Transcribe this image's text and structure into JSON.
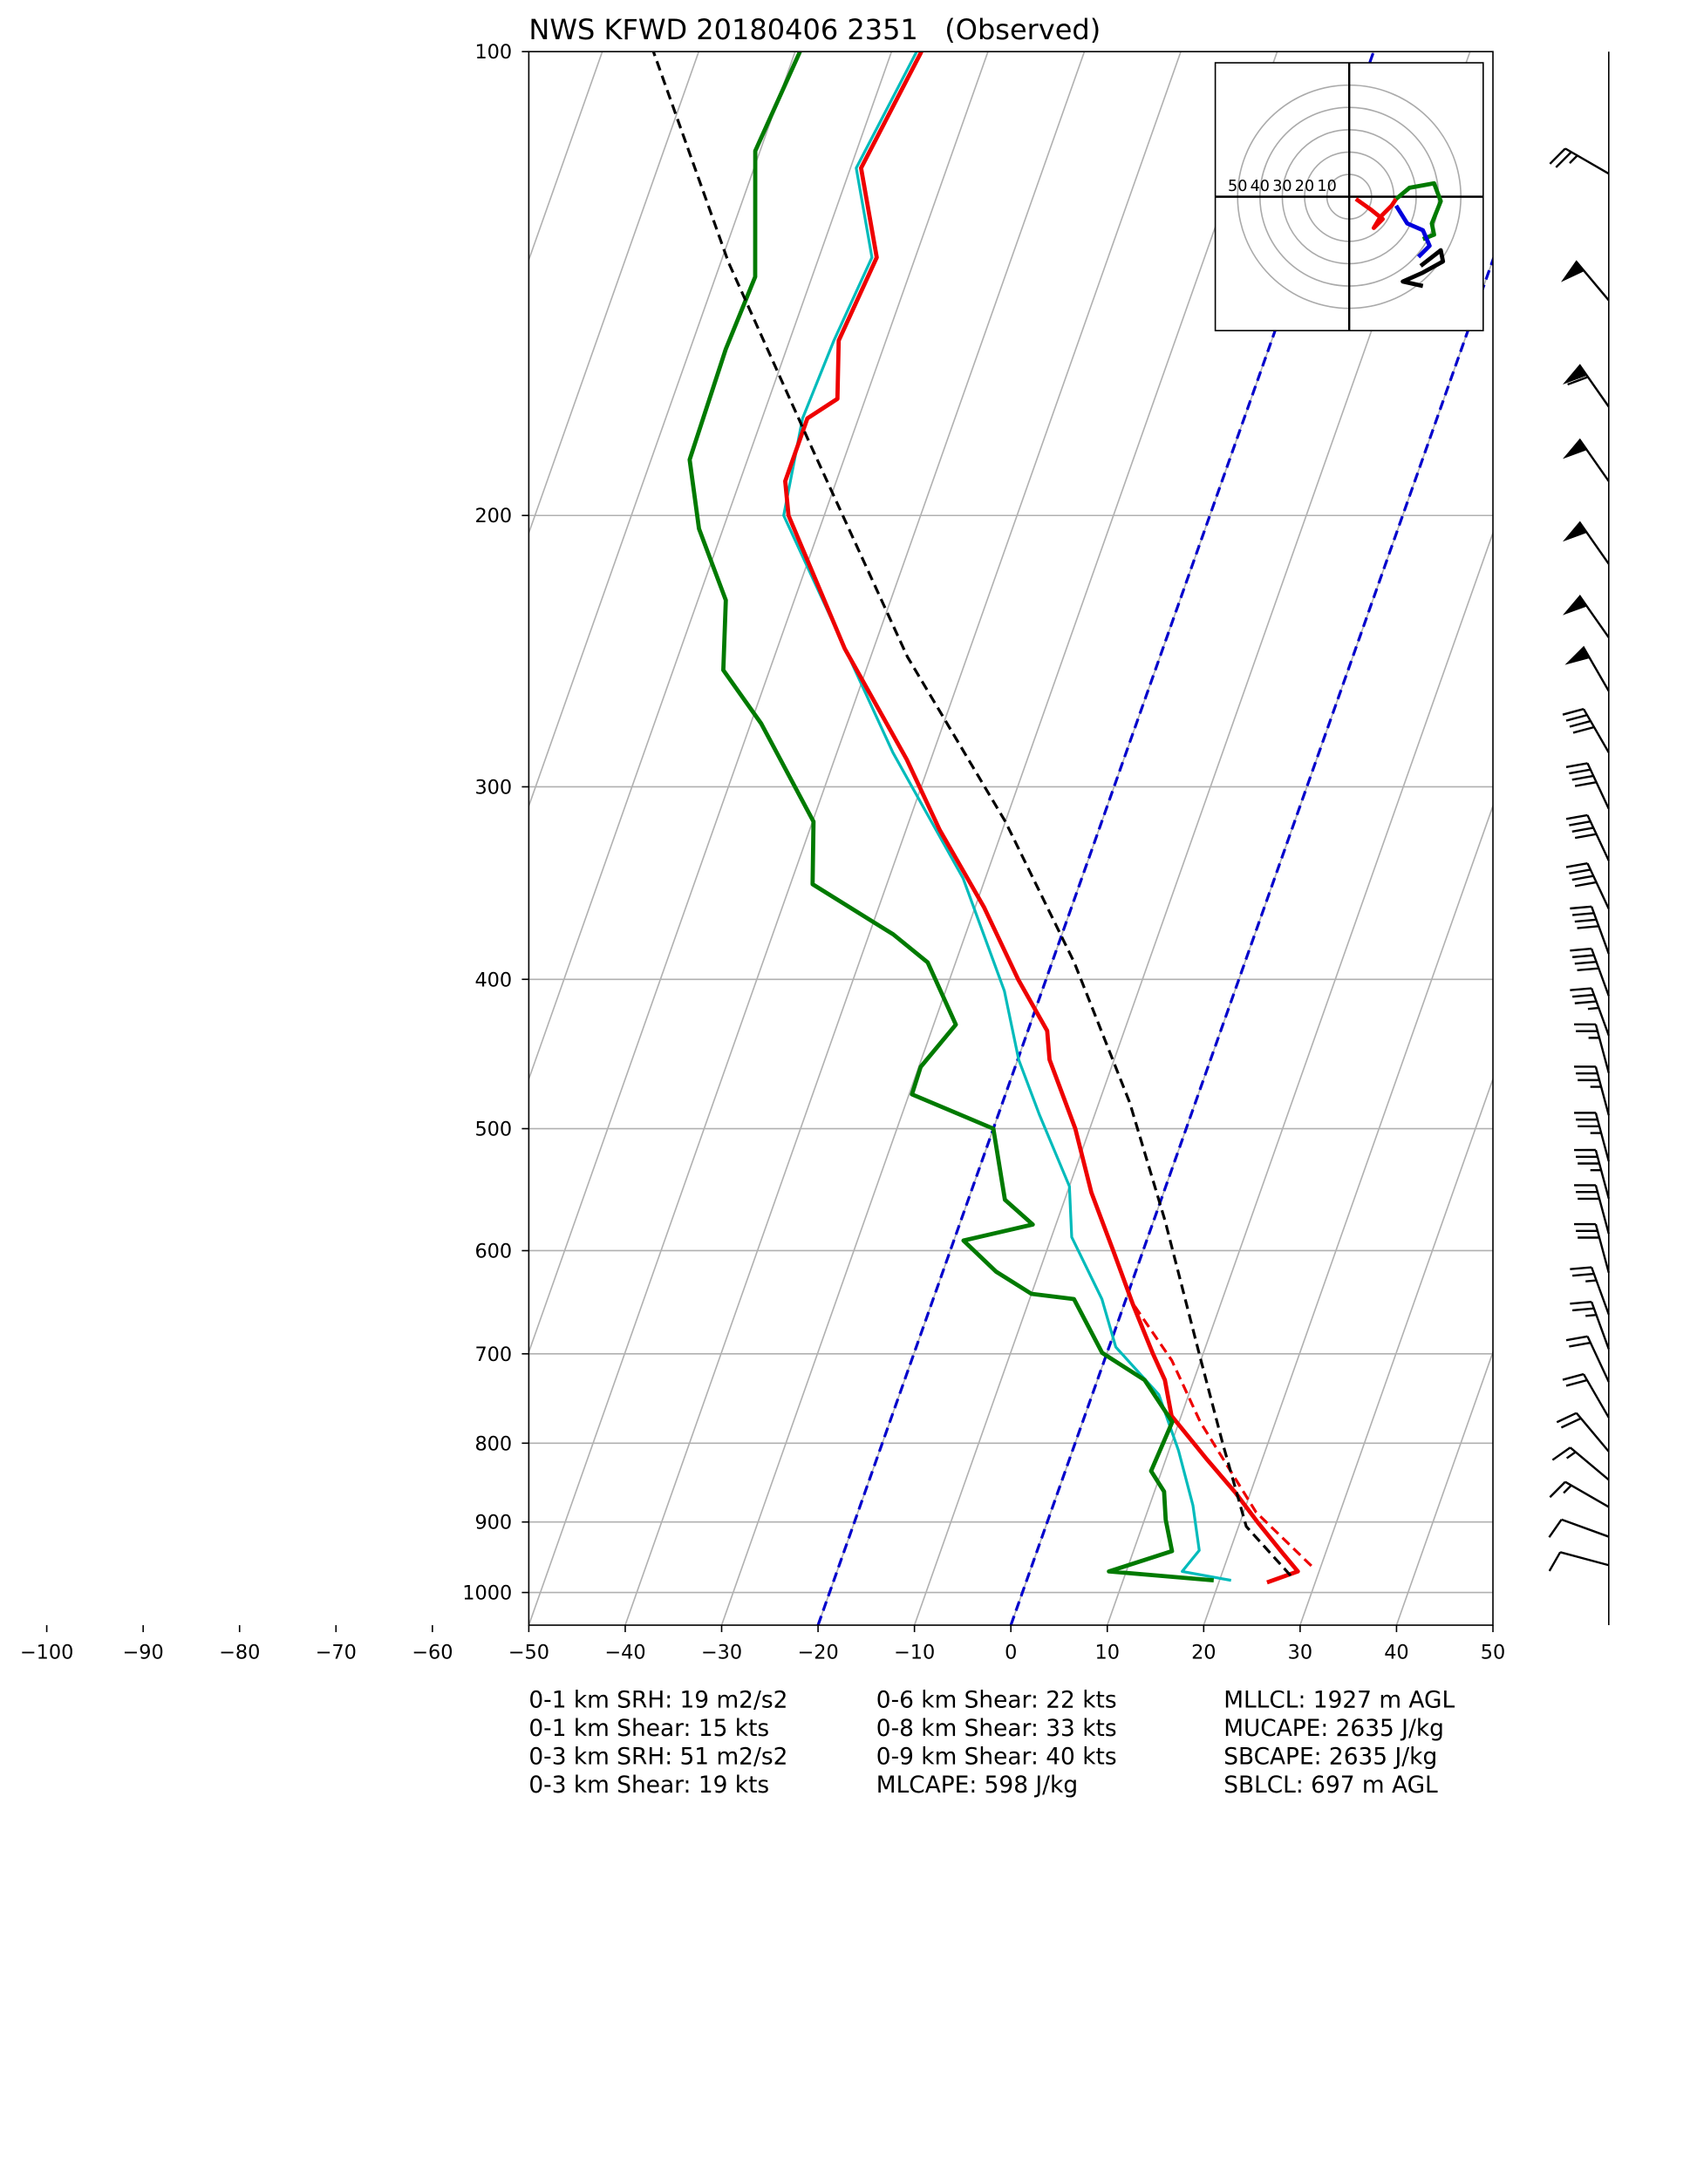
{
  "chart_data": {
    "type": "skewt",
    "title": "NWS KFWD 20180406 2351   (Observed)",
    "xlim": [
      -50,
      50
    ],
    "ylim": [
      1050,
      100
    ],
    "yscale": "log",
    "grid": true,
    "xticks": [
      {
        "value": -100,
        "label": "−100"
      },
      {
        "value": -90,
        "label": "−90"
      },
      {
        "value": -80,
        "label": "−80"
      },
      {
        "value": -70,
        "label": "−70"
      },
      {
        "value": -60,
        "label": "−60"
      },
      {
        "value": -50,
        "label": "−50"
      },
      {
        "value": -40,
        "label": "−40"
      },
      {
        "value": -30,
        "label": "−30"
      },
      {
        "value": -20,
        "label": "−20"
      },
      {
        "value": -10,
        "label": "−10"
      },
      0,
      10,
      20,
      30,
      40,
      50
    ],
    "yticks": [
      100,
      200,
      300,
      400,
      500,
      600,
      700,
      800,
      900,
      1000
    ],
    "isotherm_lines": [
      {
        "value": -20,
        "color": "#0000cc"
      },
      {
        "value": 0,
        "color": "#0000cc"
      }
    ],
    "series": [
      {
        "color": "#00bbbb",
        "style": "solid",
        "width": 2,
        "pressure": [
          982,
          969,
          939,
          878,
          809,
          744,
          693,
          645,
          588,
          545,
          490,
          451,
          407,
          344,
          285,
          237,
          200,
          173,
          154,
          136,
          119,
          100
        ],
        "values": [
          21.2,
          15.8,
          16.8,
          14.5,
          11.0,
          6.9,
          0.7,
          -2.5,
          -7.9,
          -10.0,
          -15.7,
          -19.9,
          -23.9,
          -32.3,
          -44.2,
          -54.6,
          -64.2,
          -65.8,
          -65.4,
          -64.5,
          -69.4,
          -67.4
        ]
      },
      {
        "color": "#ee0000",
        "style": "dashed",
        "width": 2,
        "pressure": [
          961,
          887,
          775,
          707,
          645
        ],
        "values": [
          29.0,
          21.3,
          12.2,
          7.0,
          0.4
        ]
      },
      {
        "color": "#ee0000",
        "style": "solid",
        "width": 3,
        "pressure": [
          985,
          969,
          940,
          900,
          861,
          820,
          768,
          728,
          700,
          650,
          600,
          550,
          500,
          451,
          432,
          400,
          359,
          320,
          288,
          244,
          200,
          190,
          173,
          168,
          154,
          136,
          119,
          100
        ],
        "values": [
          25.0,
          27.8,
          25.3,
          21.8,
          18.4,
          14.3,
          9.0,
          7.0,
          4.8,
          0.9,
          -3.1,
          -7.5,
          -11.5,
          -16.7,
          -18.0,
          -22.9,
          -29.1,
          -36.5,
          -42.5,
          -53.0,
          -63.7,
          -65.3,
          -65.3,
          -62.9,
          -64.9,
          -64.0,
          -68.9,
          -66.9
        ]
      },
      {
        "color": "#007a00",
        "style": "solid",
        "width": 3,
        "pressure": [
          982,
          969,
          940,
          897,
          860,
          834,
          775,
          728,
          699,
          645,
          640,
          619,
          591,
          577,
          556,
          500,
          475,
          456,
          428,
          390,
          374,
          347,
          316,
          273,
          252,
          227,
          204,
          184,
          156,
          140,
          116,
          100
        ],
        "values": [
          19.4,
          8.2,
          14.0,
          12.2,
          11.0,
          8.9,
          9.3,
          4.9,
          -0.5,
          -5.4,
          -10.0,
          -14.5,
          -19.0,
          -12.4,
          -16.2,
          -20.0,
          -29.7,
          -29.8,
          -27.7,
          -32.9,
          -37.5,
          -47.7,
          -49.9,
          -58.9,
          -64.8,
          -67.1,
          -72.5,
          -76.0,
          -76.3,
          -75.9,
          -80.5,
          -79.5
        ]
      },
      {
        "color": "#000000",
        "style": "dashed",
        "width": 2,
        "pressure": [
          975,
          906,
          800,
          700,
          574,
          481,
          390,
          316,
          247,
          180,
          137,
          100
        ],
        "values": [
          27.2,
          20.8,
          15.3,
          9.6,
          1.2,
          -6.8,
          -17.7,
          -30.0,
          -46.2,
          -64.0,
          -79.2,
          -94.7
        ]
      }
    ],
    "wind_barbs": {
      "color": "#000000",
      "pressure": [
        120,
        145,
        170,
        190,
        215,
        240,
        260,
        285,
        310,
        335,
        360,
        385,
        410,
        435,
        460,
        490,
        525,
        555,
        585,
        620,
        660,
        695,
        730,
        770,
        810,
        845,
        880,
        920,
        960
      ],
      "speed": [
        25,
        50,
        60,
        50,
        50,
        50,
        50,
        40,
        40,
        40,
        40,
        40,
        40,
        35,
        25,
        35,
        35,
        35,
        30,
        30,
        25,
        25,
        20,
        20,
        20,
        15,
        15,
        10,
        10
      ],
      "direction": [
        300,
        320,
        325,
        325,
        325,
        325,
        330,
        330,
        335,
        335,
        335,
        340,
        340,
        340,
        345,
        345,
        345,
        345,
        345,
        345,
        340,
        340,
        335,
        330,
        320,
        310,
        300,
        290,
        285
      ]
    },
    "hodograph": {
      "lim": [
        -60,
        60
      ],
      "rings": [
        50,
        40,
        30,
        20,
        10
      ],
      "segments": [
        {
          "color": "#ee0000",
          "u": [
            3,
            10,
            15,
            11,
            14,
            19,
            21
          ],
          "v": [
            -1,
            -6,
            -10,
            -14,
            -9,
            -4,
            -1
          ]
        },
        {
          "color": "#007a00",
          "u": [
            21,
            27,
            38,
            41,
            37,
            38,
            33
          ],
          "v": [
            -1,
            4,
            6,
            -2,
            -12,
            -17,
            -19
          ]
        },
        {
          "color": "#0000dd",
          "u": [
            21,
            26,
            33,
            36,
            31
          ],
          "v": [
            -4,
            -12,
            -15,
            -22,
            -27
          ]
        },
        {
          "color": "#000000",
          "u": [
            32,
            41,
            42,
            33,
            24,
            33
          ],
          "v": [
            -31,
            -24,
            -29,
            -34,
            -38,
            -40
          ]
        }
      ]
    },
    "stats": [
      [
        "0-1 km SRH: 19 m2/s2",
        "0-1 km Shear: 15 kts",
        "0-3 km SRH: 51 m2/s2",
        "0-3 km Shear: 19 kts"
      ],
      [
        "0-6 km Shear: 22 kts",
        "0-8 km Shear: 33 kts",
        "0-9 km Shear: 40 kts",
        "MLCAPE: 598 J/kg"
      ],
      [
        "MLLCL: 1927 m AGL",
        "MUCAPE: 2635 J/kg",
        "SBCAPE: 2635 J/kg",
        "SBLCL: 697 m AGL"
      ]
    ]
  }
}
